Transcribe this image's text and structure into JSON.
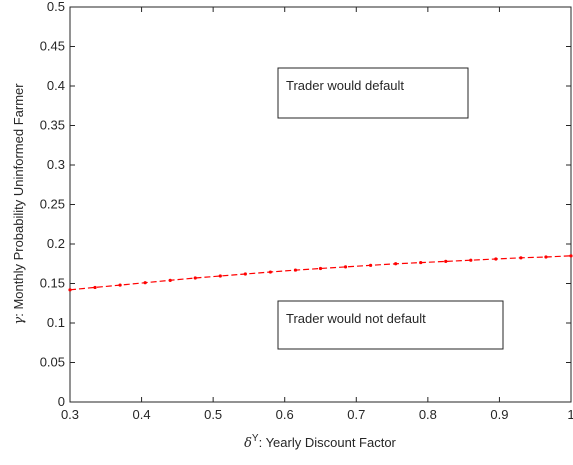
{
  "chart_data": {
    "type": "line",
    "xlabel_symbol": "δ",
    "xlabel_superscript": "Y",
    "xlabel_text": ": Yearly Discount Factor",
    "ylabel_symbol": "γ",
    "ylabel_text": ": Monthly Probability Uninformed Farmer",
    "xlim": [
      0.3,
      1
    ],
    "ylim": [
      0,
      0.5
    ],
    "xticks": [
      "0.3",
      "0.4",
      "0.5",
      "0.6",
      "0.7",
      "0.8",
      "0.9",
      "1"
    ],
    "yticks": [
      "0",
      "0.05",
      "0.1",
      "0.15",
      "0.2",
      "0.25",
      "0.3",
      "0.35",
      "0.4",
      "0.45",
      "0.5"
    ],
    "grid": false,
    "series": [
      {
        "color": "#ff0000",
        "line_style": "dashed",
        "marker": "point",
        "x": [
          0.3,
          0.335,
          0.37,
          0.405,
          0.44,
          0.475,
          0.51,
          0.545,
          0.58,
          0.615,
          0.65,
          0.685,
          0.72,
          0.755,
          0.79,
          0.825,
          0.86,
          0.895,
          0.93,
          0.965,
          1.0
        ],
        "y": [
          0.142,
          0.145,
          0.148,
          0.151,
          0.154,
          0.157,
          0.1595,
          0.162,
          0.1645,
          0.167,
          0.169,
          0.171,
          0.173,
          0.175,
          0.1765,
          0.178,
          0.1795,
          0.181,
          0.1825,
          0.1835,
          0.185
        ]
      }
    ],
    "annotations": [
      {
        "text": "Trader would default"
      },
      {
        "text": "Trader would not default"
      }
    ]
  }
}
